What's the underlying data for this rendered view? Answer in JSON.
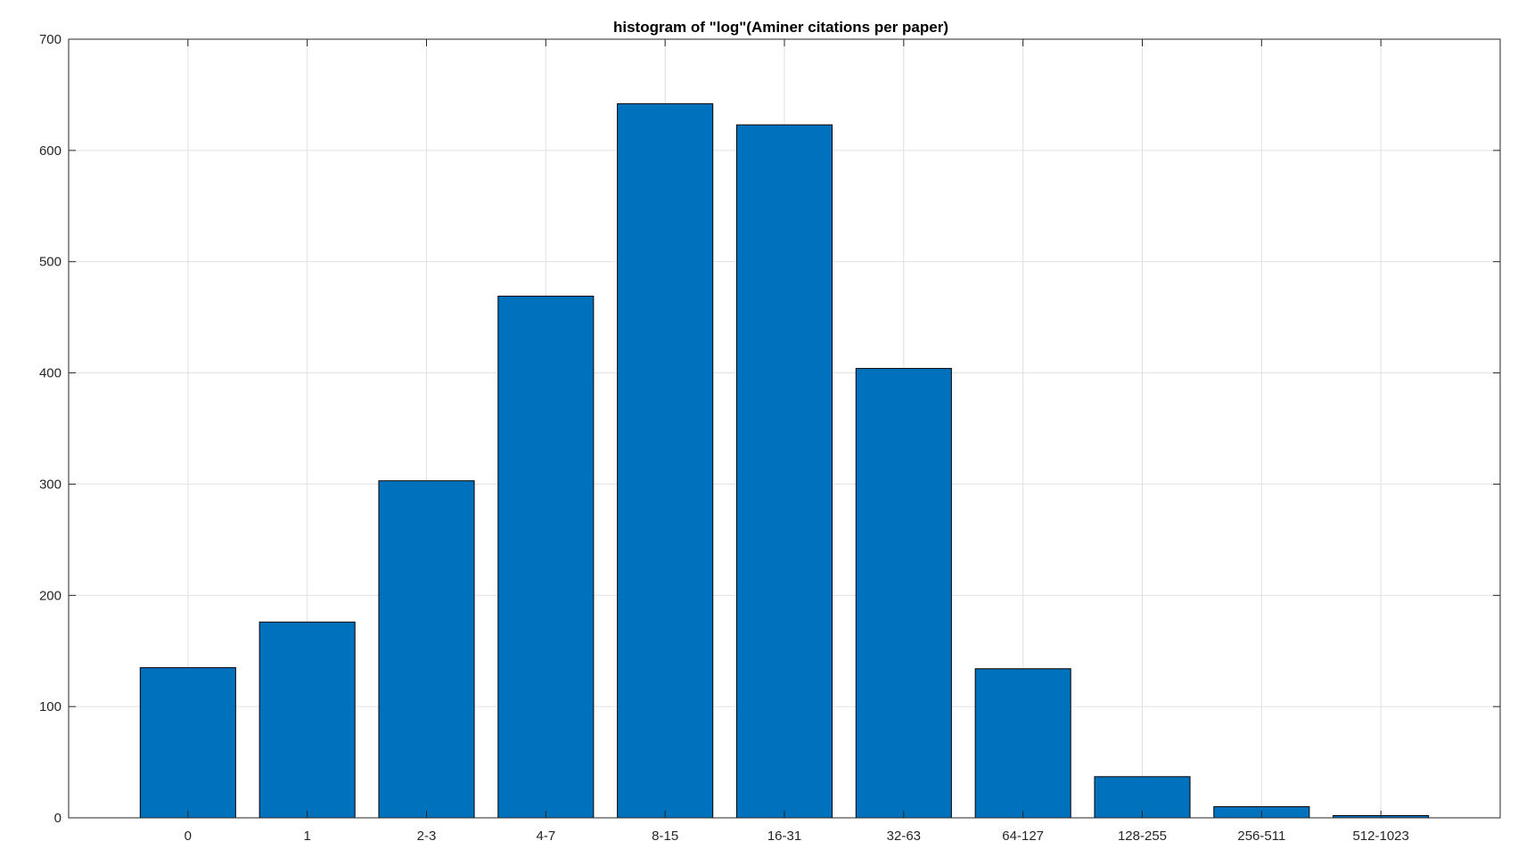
{
  "chart_data": {
    "type": "bar",
    "title": "histogram of \"log\"(Aminer citations per paper)",
    "xlabel": "",
    "ylabel": "",
    "categories": [
      "0",
      "1",
      "2-3",
      "4-7",
      "8-15",
      "16-31",
      "32-63",
      "64-127",
      "128-255",
      "256-511",
      "512-1023"
    ],
    "values": [
      135,
      176,
      303,
      469,
      642,
      623,
      404,
      134,
      37,
      10,
      2
    ],
    "ylim": [
      0,
      700
    ],
    "yticks": [
      "0",
      "100",
      "200",
      "300",
      "400",
      "500",
      "600",
      "700"
    ],
    "grid": true,
    "legend": "none",
    "colors": {
      "bar_fill": "#0072BD",
      "bar_edge": "#000000",
      "grid": "#e0e0e0",
      "axes": "#262626"
    }
  }
}
